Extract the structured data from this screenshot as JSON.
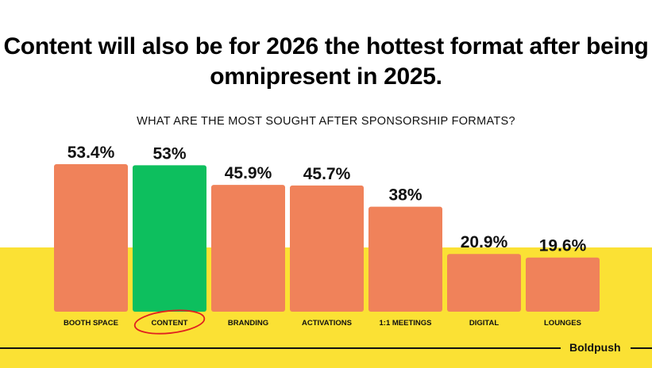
{
  "colors": {
    "bar": "#F0825A",
    "highlight": "#0DBF5E",
    "band": "#FBE134",
    "circle": "#E02020"
  },
  "chart_data": {
    "type": "bar",
    "title": "Content will also be for 2026 the hottest format after being omnipresent in 2025.",
    "subtitle": "WHAT ARE THE MOST SOUGHT AFTER SPONSORSHIP FORMATS?",
    "categories": [
      "BOOTH SPACE",
      "CONTENT",
      "BRANDING",
      "ACTIVATIONS",
      "1:1 MEETINGS",
      "DIGITAL",
      "LOUNGES"
    ],
    "values": [
      53.4,
      53,
      45.9,
      45.7,
      38,
      20.9,
      19.6
    ],
    "value_labels": [
      "53.4%",
      "53%",
      "45.9%",
      "45.7%",
      "38%",
      "20.9%",
      "19.6%"
    ],
    "highlight_category": "CONTENT",
    "ylim": [
      0,
      53.4
    ],
    "xlabel": "",
    "ylabel": ""
  },
  "footer": {
    "brand": "Boldpush"
  }
}
